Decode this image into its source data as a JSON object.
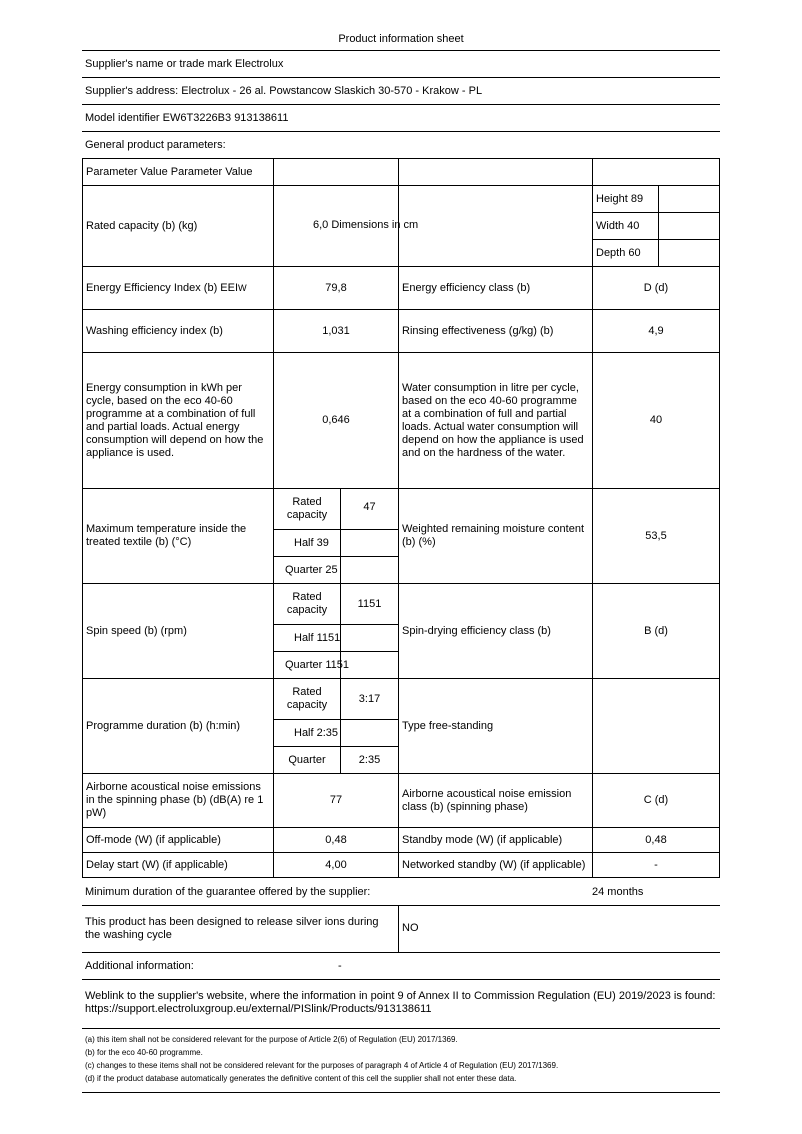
{
  "title": "Product information sheet",
  "supplier_name": "Supplier's name or trade mark Electrolux",
  "supplier_address": "Supplier's address: Electrolux - 26 al. Powstancow Slaskich 30-570 - Krakow - PL",
  "model_identifier": "Model identifier EW6T3226B3 913138611",
  "general_params": "General product parameters:",
  "header": "Parameter Value Parameter Value",
  "rated_capacity": {
    "label": "Rated capacity (b) (kg)",
    "value_and_dim": "6,0 Dimensions in cm",
    "height": "Height 89",
    "width": "Width 40",
    "depth": "Depth 60"
  },
  "eei": {
    "label": "Energy Efficiency Index (b) EEI",
    "sub": "W",
    "value": "79,8",
    "class_label": "Energy efficiency class (b)",
    "class_value": "D (d)"
  },
  "washing": {
    "label": "Washing efficiency index (b)",
    "value": "1,031",
    "rinse_label": "Rinsing effectiveness (g/kg) (b)",
    "rinse_value": "4,9"
  },
  "energy_consumption": {
    "label": "Energy consumption in kWh per cycle, based on the eco 40-60 programme at a combination of full and partial loads. Actual energy consumption will depend on how the appliance is used.",
    "value": "0,646",
    "water_label": "Water consumption in litre per cycle, based on the eco 40-60 programme at a combination of full and partial loads. Actual water consumption will depend on how the appliance is used and on the hardness of the water.",
    "water_value": "40"
  },
  "temperature": {
    "label": "Maximum temperature inside the treated textile (b) (°C)",
    "rated_label": "Rated capacity",
    "rated_value": "47",
    "half": "Half 39",
    "quarter": "Quarter 25",
    "moisture_label": "Weighted remaining moisture content (b) (%)",
    "moisture_value": "53,5"
  },
  "spin": {
    "label": "Spin speed (b) (rpm)",
    "rated_label": "Rated capacity",
    "rated_value": "1151",
    "half": "Half 1151",
    "quarter": "Quarter 1151",
    "class_label": "Spin-drying efficiency class (b)",
    "class_value": "B (d)"
  },
  "duration": {
    "label": "Programme duration (b) (h:min)",
    "rated_label": "Rated capacity",
    "rated_value": "3:17",
    "half": "Half 2:35",
    "quarter_label": "Quarter",
    "quarter_value": "2:35",
    "type": "Type free-standing"
  },
  "noise": {
    "label": "Airborne acoustical noise emissions in the spinning phase (b) (dB(A) re 1 pW)",
    "value": "77",
    "class_label": "Airborne acoustical noise emission class (b) (spinning phase)",
    "class_value": "C (d)"
  },
  "off_mode": {
    "label": "Off-mode (W) (if applicable)",
    "value": "0,48",
    "standby_label": "Standby mode (W) (if applicable)",
    "standby_value": "0,48"
  },
  "delay": {
    "label": "Delay start (W) (if applicable)",
    "value": "4,00",
    "networked_label": "Networked standby (W) (if applicable)",
    "networked_value": "-"
  },
  "guarantee": {
    "label": "Minimum duration of the guarantee offered by the supplier:",
    "value": "24 months"
  },
  "silver": {
    "label": "This product has been designed to release silver ions during the washing cycle",
    "value": "NO"
  },
  "additional": {
    "label": "Additional information:",
    "value": "-"
  },
  "weblink": "Weblink to the supplier's website, where the information in point 9 of Annex II to Commission Regulation (EU) 2019/2023 is found: https://support.electroluxgroup.eu/external/PISlink/Products/913138611",
  "footnotes": [
    "(a) this item shall not be considered relevant for the purpose of Article 2(6) of Regulation (EU) 2017/1369.",
    "(b) for the eco 40-60 programme.",
    "(c) changes to these items shall not be considered relevant for the purposes of paragraph 4 of Article 4 of Regulation (EU) 2017/1369.",
    "(d) if the product database automatically generates the definitive content of this cell the supplier shall not enter these data."
  ]
}
